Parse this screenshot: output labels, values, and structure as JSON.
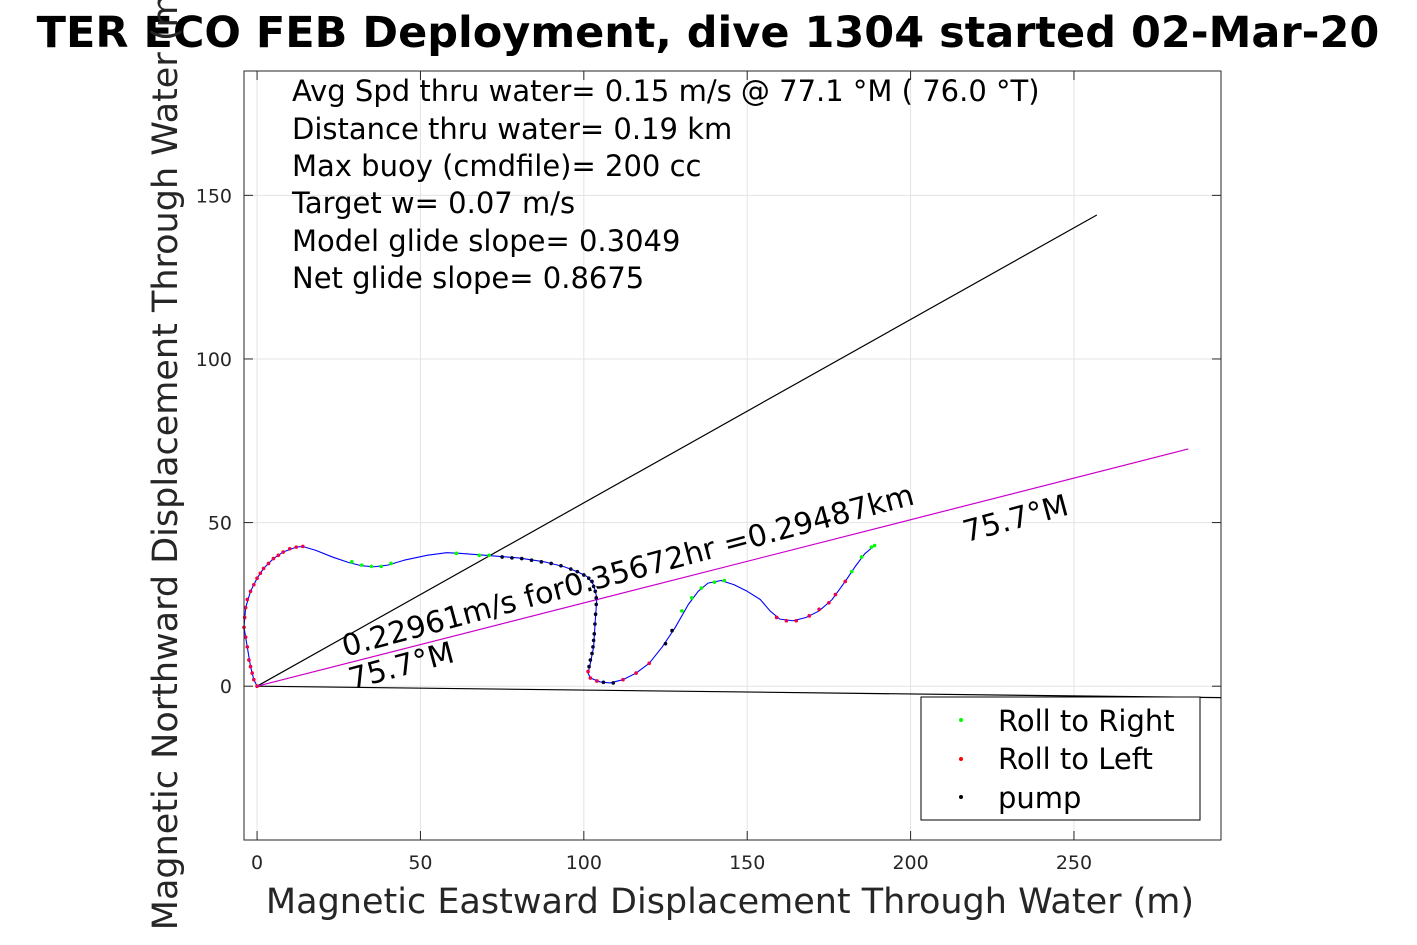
{
  "chart_data": {
    "type": "scatter",
    "title": "TER ECO FEB Deployment, dive 1304 started 02-Mar-20",
    "xlabel": "Magnetic Eastward Displacement Through Water (m)",
    "ylabel": "Magnetic Northward Displacement Through Water (m)",
    "xlim": [
      -4,
      295
    ],
    "ylim": [
      -47,
      188
    ],
    "xticks": [
      0,
      50,
      100,
      150,
      200,
      250
    ],
    "yticks": [
      0,
      50,
      100,
      150
    ],
    "grid": true,
    "info_lines": [
      "Avg Spd thru water=  0.15 m/s @  77.1 °M ( 76.0 °T)",
      "Distance thru water=  0.19 km",
      "Max buoy (cmdfile)= 200 cc",
      "Target w= 0.07 m/s",
      "Model glide slope= 0.3049",
      "Net glide slope= 0.8675"
    ],
    "annotations": [
      {
        "text": "0.22961m/s for0.35672hr =0.29487km",
        "x": 27,
        "y": 9,
        "rotation_deg": -15
      },
      {
        "text": "75.7°M",
        "x": 29,
        "y": -1,
        "rotation_deg": -15
      },
      {
        "text": "75.7°M",
        "x": 217,
        "y": 44,
        "rotation_deg": -15
      }
    ],
    "lines": [
      {
        "name": "upper-bound",
        "color": "#000000",
        "points": [
          [
            0,
            0
          ],
          [
            257,
            144
          ]
        ]
      },
      {
        "name": "lower-bound",
        "color": "#000000",
        "points": [
          [
            0,
            0
          ],
          [
            295,
            -3.5
          ]
        ]
      },
      {
        "name": "heading",
        "color": "#cc00cc",
        "points": [
          [
            0,
            0
          ],
          [
            285,
            72.5
          ]
        ]
      }
    ],
    "track": {
      "color": "#0000ff",
      "points": [
        [
          0,
          0
        ],
        [
          -1,
          2
        ],
        [
          -2,
          6
        ],
        [
          -3,
          12
        ],
        [
          -4,
          18
        ],
        [
          -3.5,
          24
        ],
        [
          -2,
          29
        ],
        [
          0,
          33
        ],
        [
          2,
          36
        ],
        [
          5,
          39
        ],
        [
          8,
          41
        ],
        [
          12,
          42.5
        ],
        [
          14,
          42.7
        ],
        [
          18,
          41.5
        ],
        [
          23,
          39.5
        ],
        [
          28,
          37.8
        ],
        [
          32,
          36.8
        ],
        [
          36,
          36.5
        ],
        [
          40,
          37
        ],
        [
          45,
          38.5
        ],
        [
          52,
          40
        ],
        [
          58,
          40.8
        ],
        [
          62,
          40.6
        ],
        [
          70,
          40
        ],
        [
          80,
          39.2
        ],
        [
          88,
          38
        ],
        [
          94,
          36.5
        ],
        [
          98,
          35
        ],
        [
          101,
          33.5
        ],
        [
          103,
          31
        ],
        [
          104,
          27
        ],
        [
          103.5,
          20
        ],
        [
          103,
          12
        ],
        [
          102,
          7
        ],
        [
          101.3,
          4
        ],
        [
          102,
          2.5
        ],
        [
          105,
          1.3
        ],
        [
          108,
          1
        ],
        [
          112,
          2
        ],
        [
          116,
          4
        ],
        [
          120,
          7
        ],
        [
          124,
          12
        ],
        [
          128,
          18
        ],
        [
          132,
          25
        ],
        [
          135,
          29
        ],
        [
          138,
          31.5
        ],
        [
          142,
          32.3
        ],
        [
          146,
          31
        ],
        [
          150,
          29
        ],
        [
          154,
          26.5
        ],
        [
          157,
          23
        ],
        [
          160,
          20.5
        ],
        [
          164,
          20
        ],
        [
          168,
          21
        ],
        [
          172,
          23
        ],
        [
          176,
          26.5
        ],
        [
          180,
          32
        ],
        [
          183,
          36.5
        ],
        [
          186,
          40.5
        ],
        [
          189,
          43
        ]
      ]
    },
    "points": {
      "roll_right": [
        [
          29,
          38
        ],
        [
          32,
          37
        ],
        [
          35,
          36.6
        ],
        [
          38,
          36.6
        ],
        [
          41,
          37.5
        ],
        [
          61,
          40.6
        ],
        [
          68,
          40
        ],
        [
          71,
          40
        ],
        [
          130,
          23
        ],
        [
          133,
          27
        ],
        [
          136,
          30
        ],
        [
          140,
          31.8
        ],
        [
          143,
          32.3
        ],
        [
          182,
          35
        ],
        [
          185,
          39.5
        ],
        [
          188,
          42.5
        ],
        [
          189,
          43
        ]
      ],
      "roll_left": [
        [
          0,
          0
        ],
        [
          -1,
          2
        ],
        [
          -1.5,
          4
        ],
        [
          -2,
          6
        ],
        [
          -2.5,
          8
        ],
        [
          -3,
          12
        ],
        [
          -3.5,
          15
        ],
        [
          -4,
          18
        ],
        [
          -3.8,
          21
        ],
        [
          -3.5,
          24
        ],
        [
          -3,
          26.5
        ],
        [
          -2,
          29
        ],
        [
          -1,
          31
        ],
        [
          0,
          33
        ],
        [
          1,
          34.5
        ],
        [
          2,
          36
        ],
        [
          3.5,
          37.5
        ],
        [
          5,
          39
        ],
        [
          6.5,
          40
        ],
        [
          8,
          41
        ],
        [
          10,
          42
        ],
        [
          12,
          42.5
        ],
        [
          14,
          42.7
        ],
        [
          101.3,
          4.5
        ],
        [
          102,
          2.5
        ],
        [
          104,
          1.6
        ],
        [
          112,
          2
        ],
        [
          116,
          4
        ],
        [
          120,
          7
        ],
        [
          159,
          21
        ],
        [
          162,
          20
        ],
        [
          165,
          20
        ],
        [
          169,
          21.5
        ],
        [
          172,
          23.5
        ],
        [
          175,
          25.5
        ],
        [
          177,
          28
        ],
        [
          180,
          32
        ]
      ],
      "pump": [
        [
          75,
          39.5
        ],
        [
          78,
          39.2
        ],
        [
          81,
          39
        ],
        [
          84,
          38.5
        ],
        [
          87,
          38
        ],
        [
          90,
          37.5
        ],
        [
          93,
          36.8
        ],
        [
          96,
          35.8
        ],
        [
          98,
          35
        ],
        [
          100,
          34
        ],
        [
          101.5,
          33
        ],
        [
          102.5,
          32
        ],
        [
          103,
          30.5
        ],
        [
          103.5,
          29
        ],
        [
          103.8,
          27
        ],
        [
          103.8,
          25
        ],
        [
          103.6,
          22
        ],
        [
          103.4,
          19
        ],
        [
          103.2,
          16
        ],
        [
          103,
          14
        ],
        [
          102.8,
          12
        ],
        [
          102.5,
          10
        ],
        [
          102,
          8
        ],
        [
          101.6,
          6
        ],
        [
          106,
          1.2
        ],
        [
          109,
          1
        ],
        [
          127,
          17
        ],
        [
          125,
          13
        ]
      ]
    },
    "legend": {
      "position": "bottom-right",
      "entries": [
        {
          "label": "Roll to Right",
          "color": "#00ff00"
        },
        {
          "label": "Roll to Left",
          "color": "#ff0000"
        },
        {
          "label": "pump",
          "color": "#000000"
        }
      ]
    }
  }
}
